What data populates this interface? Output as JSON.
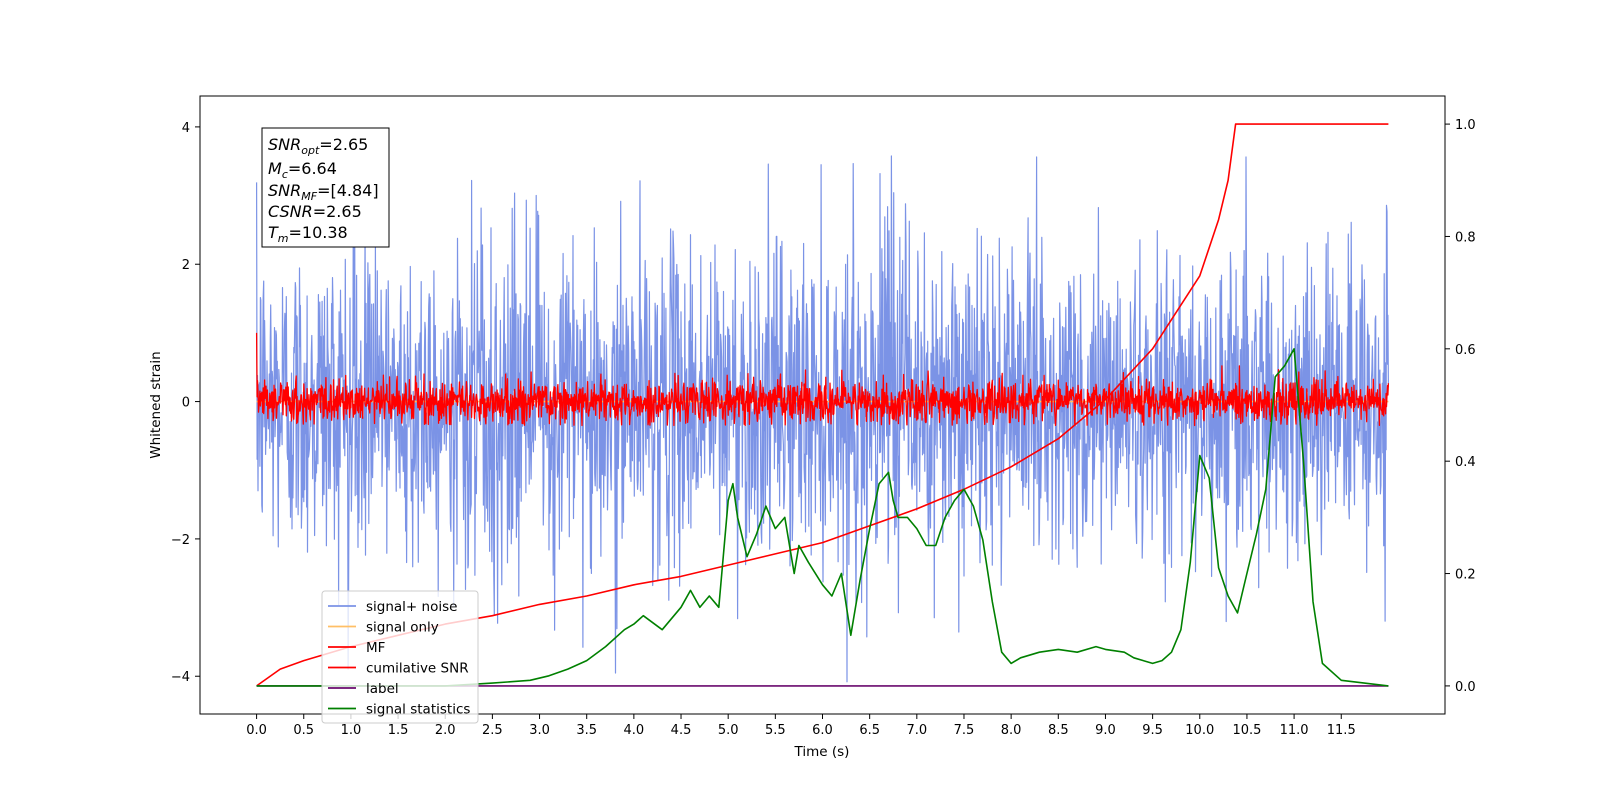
{
  "colors": {
    "signal_noise": "#7b93e6",
    "signal_only": "#ffbf66",
    "mf": "#ff0000",
    "cumulative_snr": "#ff0000",
    "label": "#6a0a6e",
    "signal_statistics": "#008000"
  },
  "annotation": {
    "line1": {
      "base": "SNR",
      "sub": "opt",
      "value": "=2.65"
    },
    "line2": {
      "base": "M",
      "sub": "c",
      "value": "=6.64"
    },
    "line3": {
      "base": "SNR",
      "sub": "MF",
      "value": "=[4.84]"
    },
    "line4": {
      "base": "CSNR",
      "sub": "",
      "value": "=2.65"
    },
    "line5": {
      "base": "T",
      "sub": "m",
      "value": "=10.38"
    }
  },
  "chart_data": {
    "type": "line",
    "xlabel": "Time (s)",
    "ylabel": "Whitened strain",
    "y2label": "",
    "xlim": [
      -0.6,
      12.6
    ],
    "ylim": [
      -4.55,
      4.45
    ],
    "y2lim": [
      -0.05,
      1.05
    ],
    "xticks": [
      "0.0",
      "0.5",
      "1.0",
      "1.5",
      "2.0",
      "2.5",
      "3.0",
      "3.5",
      "4.0",
      "4.5",
      "5.0",
      "5.5",
      "6.0",
      "6.5",
      "7.0",
      "7.5",
      "8.0",
      "8.5",
      "9.0",
      "9.5",
      "10.0",
      "10.5",
      "11.0",
      "11.5"
    ],
    "yticks": [
      "4",
      "2",
      "0",
      "−2",
      "−4"
    ],
    "y2ticks": [
      "1.0",
      "0.8",
      "0.6",
      "0.4",
      "0.2",
      "0.0"
    ],
    "legend_position": "lower-left",
    "legend": [
      "signal+ noise",
      "signal only",
      "MF",
      "cumilative SNR",
      "label",
      "signal statistics"
    ],
    "series": [
      {
        "name": "signal+ noise",
        "axis": "left",
        "style": "noise",
        "x_range": [
          0,
          12
        ],
        "center": 0.0,
        "std": 1.15,
        "min": -4.1,
        "max": 4.0
      },
      {
        "name": "signal only",
        "axis": "left",
        "style": "flat",
        "x": [
          0,
          12
        ],
        "y": [
          0,
          0
        ]
      },
      {
        "name": "MF",
        "axis": "left",
        "style": "noise",
        "x_range": [
          0,
          12
        ],
        "center": 0.0,
        "std": 0.16,
        "min": -0.35,
        "max": 1.0
      },
      {
        "name": "cumilative SNR",
        "axis": "right",
        "x": [
          0,
          0.25,
          0.5,
          1,
          1.5,
          2,
          2.5,
          3,
          3.5,
          4,
          4.5,
          5,
          5.5,
          6,
          6.5,
          7,
          7.5,
          8,
          8.5,
          9,
          9.5,
          10,
          10.2,
          10.3,
          10.38,
          12
        ],
        "y": [
          0,
          0.03,
          0.045,
          0.07,
          0.09,
          0.11,
          0.125,
          0.145,
          0.16,
          0.18,
          0.195,
          0.215,
          0.235,
          0.255,
          0.285,
          0.315,
          0.35,
          0.39,
          0.44,
          0.51,
          0.6,
          0.73,
          0.83,
          0.9,
          1.0,
          1.0
        ]
      },
      {
        "name": "label",
        "axis": "right",
        "x": [
          0,
          12
        ],
        "y": [
          0,
          0
        ]
      },
      {
        "name": "signal statistics",
        "axis": "right",
        "x": [
          0,
          1,
          2,
          2.5,
          2.9,
          3.1,
          3.3,
          3.5,
          3.7,
          3.9,
          4.0,
          4.1,
          4.3,
          4.5,
          4.6,
          4.7,
          4.8,
          4.9,
          5.0,
          5.05,
          5.1,
          5.2,
          5.3,
          5.4,
          5.5,
          5.6,
          5.7,
          5.75,
          5.85,
          6.0,
          6.1,
          6.2,
          6.3,
          6.4,
          6.5,
          6.6,
          6.7,
          6.75,
          6.8,
          6.9,
          7.0,
          7.1,
          7.2,
          7.3,
          7.4,
          7.5,
          7.6,
          7.7,
          7.8,
          7.9,
          8.0,
          8.1,
          8.3,
          8.5,
          8.7,
          8.9,
          9.0,
          9.2,
          9.3,
          9.5,
          9.6,
          9.7,
          9.8,
          9.9,
          10.0,
          10.1,
          10.2,
          10.3,
          10.4,
          10.5,
          10.6,
          10.7,
          10.8,
          10.9,
          11.0,
          11.1,
          11.2,
          11.3,
          11.5,
          12
        ],
        "y": [
          0.0,
          0.0,
          0.0,
          0.005,
          0.01,
          0.018,
          0.03,
          0.045,
          0.07,
          0.1,
          0.11,
          0.125,
          0.1,
          0.14,
          0.17,
          0.14,
          0.16,
          0.14,
          0.33,
          0.36,
          0.3,
          0.23,
          0.27,
          0.32,
          0.28,
          0.3,
          0.2,
          0.25,
          0.22,
          0.18,
          0.16,
          0.2,
          0.09,
          0.19,
          0.28,
          0.36,
          0.38,
          0.33,
          0.3,
          0.3,
          0.28,
          0.25,
          0.25,
          0.3,
          0.33,
          0.35,
          0.32,
          0.26,
          0.15,
          0.06,
          0.04,
          0.05,
          0.06,
          0.065,
          0.06,
          0.07,
          0.065,
          0.06,
          0.05,
          0.04,
          0.045,
          0.06,
          0.1,
          0.22,
          0.41,
          0.37,
          0.21,
          0.16,
          0.13,
          0.2,
          0.27,
          0.35,
          0.55,
          0.57,
          0.6,
          0.4,
          0.15,
          0.04,
          0.01,
          0.0
        ]
      }
    ]
  }
}
